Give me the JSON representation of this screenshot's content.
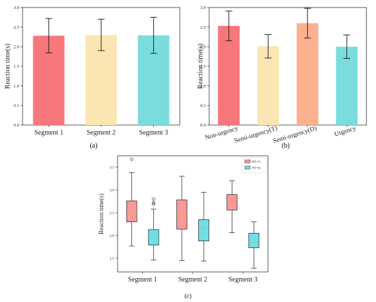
{
  "chart_data": [
    {
      "id": "a",
      "caption": "(a)",
      "type": "bar",
      "categories": [
        "Segment 1",
        "Segment 2",
        "Segment 3"
      ],
      "values": [
        2.28,
        2.3,
        2.29
      ],
      "errors": [
        0.44,
        0.4,
        0.46
      ],
      "colors": [
        "#f8777a",
        "#fbe6b3",
        "#7adcdc"
      ],
      "ylabel": "Reaction time(s)",
      "ylim": [
        0,
        3.0
      ],
      "yticks": [
        "0.0",
        "0.5",
        "1.0",
        "1.5",
        "2.0",
        "2.5",
        "3.0"
      ]
    },
    {
      "id": "b",
      "caption": "(b)",
      "type": "bar",
      "categories": [
        "Non-urgency",
        "Semi-urgency(T)",
        "Semi-urgency(D)",
        "Urgency"
      ],
      "values": [
        2.53,
        2.01,
        2.6,
        2.0
      ],
      "errors": [
        0.38,
        0.3,
        0.38,
        0.3
      ],
      "colors": [
        "#f8777a",
        "#fbe6b3",
        "#fbb08e",
        "#7adcdc"
      ],
      "ylabel": "Reaction time(s)",
      "ylim": [
        0,
        3.0
      ],
      "yticks": [
        "0.0",
        "0.5",
        "1.0",
        "1.5",
        "2.0",
        "2.5",
        "3.0"
      ]
    },
    {
      "id": "c",
      "caption": "(c)",
      "type": "box",
      "categories": [
        "Segment 1",
        "Segment 2",
        "Segment 3"
      ],
      "ylabel": "Reaction time(s)",
      "ylim": [
        1.2,
        3.75
      ],
      "yticks": [
        "1.5",
        "2.0",
        "2.5",
        "3.0",
        "3.5"
      ],
      "series": [
        {
          "name": "BT=7s",
          "color": "#f8989b",
          "boxes": [
            {
              "whislo": 1.77,
              "q1": 2.3,
              "med": 2.47,
              "q3": 2.76,
              "whishi": 3.38,
              "fliers": [
                3.67
              ]
            },
            {
              "whislo": 1.45,
              "q1": 2.14,
              "med": 2.45,
              "q3": 2.78,
              "whishi": 3.3,
              "fliers": []
            },
            {
              "whislo": 2.06,
              "q1": 2.56,
              "med": 2.74,
              "q3": 2.9,
              "whishi": 3.2,
              "fliers": []
            }
          ]
        },
        {
          "name": "BT=5s",
          "color": "#6ee0e6",
          "boxes": [
            {
              "whislo": 1.46,
              "q1": 1.79,
              "med": 1.96,
              "q3": 2.13,
              "whishi": 2.58,
              "fliers": [
                2.69,
                2.72,
                2.8
              ]
            },
            {
              "whislo": 1.44,
              "q1": 1.88,
              "med": 2.18,
              "q3": 2.35,
              "whishi": 2.95,
              "fliers": []
            },
            {
              "whislo": 1.28,
              "q1": 1.73,
              "med": 1.86,
              "q3": 2.05,
              "whishi": 2.3,
              "fliers": []
            }
          ]
        }
      ],
      "median_color": "#f0b040"
    }
  ]
}
